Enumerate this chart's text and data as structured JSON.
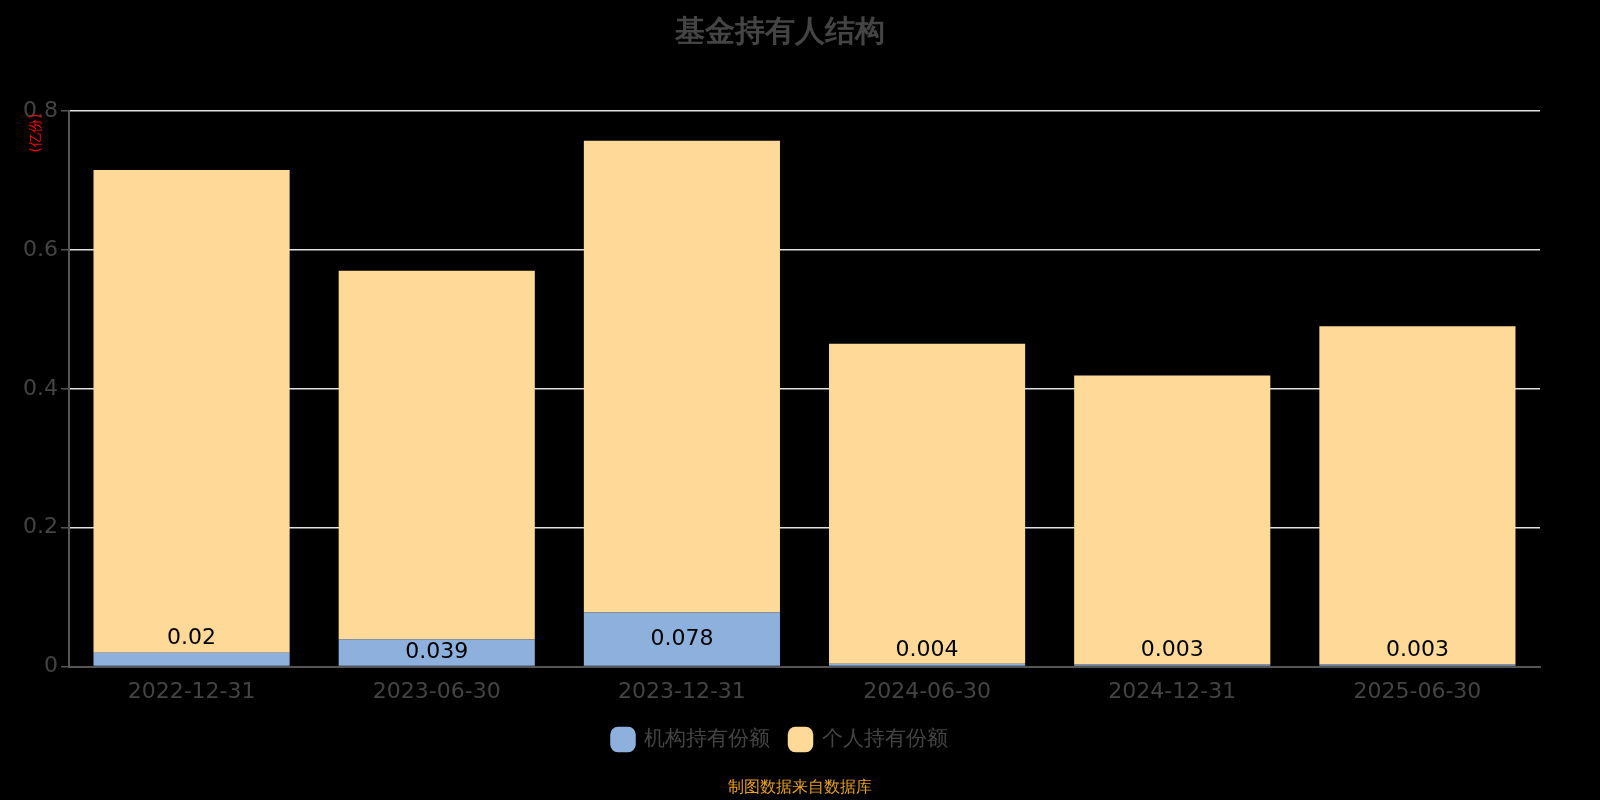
{
  "chart_data": {
    "type": "bar",
    "title": "基金持有人结构",
    "ylabel": "(亿份)",
    "categories": [
      "2022-12-31",
      "2023-06-30",
      "2023-12-31",
      "2024-06-30",
      "2024-12-31",
      "2025-06-30"
    ],
    "stacked": true,
    "series": [
      {
        "name": "机构持有份额",
        "color": "#8eb0dd",
        "values": [
          0.02,
          0.039,
          0.078,
          0.004,
          0.003,
          0.003
        ],
        "value_labels": [
          "0.02",
          "0.039",
          "0.078",
          "0.004",
          "0.003",
          "0.003"
        ]
      },
      {
        "name": "个人持有份额",
        "color": "#ffd998",
        "values": [
          0.695,
          0.531,
          0.679,
          0.461,
          0.416,
          0.487
        ]
      }
    ],
    "ylim": [
      0,
      0.8
    ],
    "yticks": [
      0,
      0.2,
      0.4,
      0.6,
      0.8
    ],
    "grid": "y",
    "legend": "bottom",
    "annotations": [
      "制图数据来自数据库"
    ]
  }
}
